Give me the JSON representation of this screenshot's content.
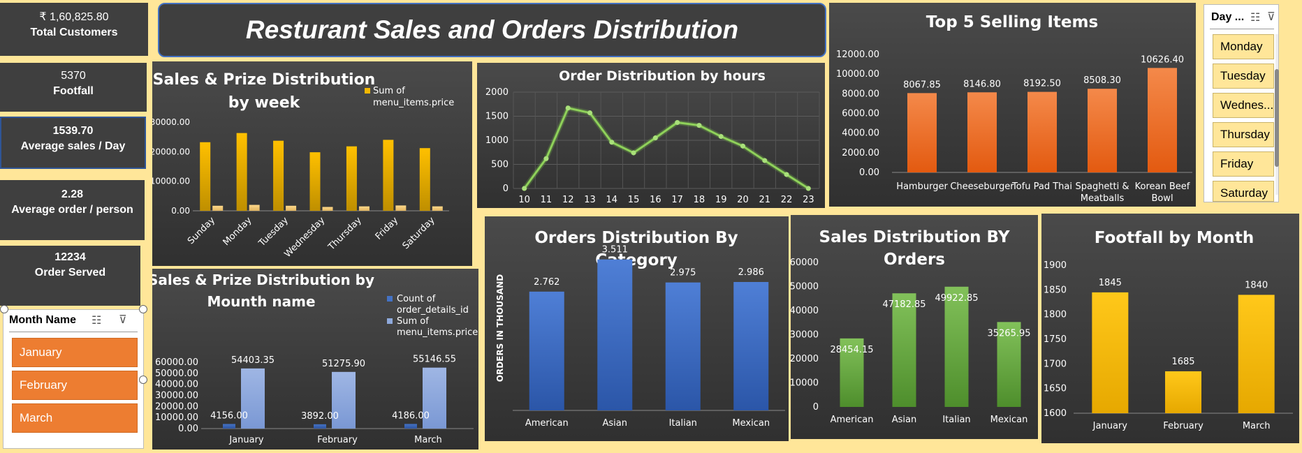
{
  "title": "Resturant Sales and Orders Distribution",
  "kpis": [
    {
      "value": "₹ 1,60,825.80",
      "label": "Total Customers"
    },
    {
      "value": "5370",
      "label": "Footfall"
    },
    {
      "value": "1539.70",
      "label": "Average sales / Day"
    },
    {
      "value": "2.28",
      "label": "Average order / person"
    },
    {
      "value": "12234",
      "label": "Order Served"
    }
  ],
  "month_slicer": {
    "header": "Month Name",
    "items": [
      "January",
      "February",
      "March"
    ]
  },
  "day_slicer": {
    "header": "Day ...",
    "items": [
      "Monday",
      "Tuesday",
      "Wednes...",
      "Thursday",
      "Friday",
      "Saturday"
    ]
  },
  "colors": {
    "orange": "#ED7D31",
    "gold": "#F2B700",
    "green": "#70AD47",
    "blue": "#4472C4",
    "light_blue": "#8EA9DB"
  },
  "chart_data": [
    {
      "id": "week",
      "type": "bar",
      "title": "Sales & Prize Distribution by week",
      "categories": [
        "Sunday",
        "Monday",
        "Tuesday",
        "Wednesday",
        "Thursday",
        "Friday",
        "Saturday"
      ],
      "series": [
        {
          "name": "",
          "values": [
            23200,
            26300,
            23700,
            19800,
            21800,
            24000,
            21200
          ]
        },
        {
          "name": "Sum of menu_items.price",
          "values": [
            1700,
            2000,
            1700,
            1300,
            1500,
            1800,
            1500
          ]
        }
      ],
      "yticks": [
        "0.00",
        "10000.00",
        "20000.00",
        "30000.00"
      ],
      "ylim": [
        0,
        34000
      ]
    },
    {
      "id": "hours",
      "type": "line",
      "title": "Order Distribution by hours",
      "x": [
        "10",
        "11",
        "12",
        "13",
        "14",
        "15",
        "16",
        "17",
        "18",
        "19",
        "20",
        "21",
        "22",
        "23"
      ],
      "values": [
        0,
        620,
        1670,
        1570,
        960,
        740,
        1050,
        1370,
        1310,
        1080,
        880,
        580,
        290,
        0
      ],
      "yticks": [
        "0",
        "500",
        "1000",
        "1500",
        "2000"
      ],
      "ylim": [
        0,
        2000
      ]
    },
    {
      "id": "top5",
      "type": "bar",
      "title": "Top 5 Selling Items",
      "categories": [
        "Hamburger",
        "Cheeseburger",
        "Tofu Pad Thai",
        "Spaghetti & Meatballs",
        "Korean Beef Bowl"
      ],
      "values": [
        8067.85,
        8146.8,
        8192.5,
        8508.3,
        10626.4
      ],
      "labels": [
        "8067.85",
        "8146.80",
        "8192.50",
        "8508.30",
        "10626.40"
      ],
      "yticks": [
        "0.00",
        "2000.00",
        "4000.00",
        "6000.00",
        "8000.00",
        "10000.00",
        "12000.00"
      ],
      "ylim": [
        0,
        12000
      ]
    },
    {
      "id": "month",
      "type": "bar",
      "title": "Sales & Prize Distribution by Mounth name",
      "categories": [
        "January",
        "February",
        "March"
      ],
      "series": [
        {
          "name": "Count of order_details_id",
          "values": [
            4156,
            3892,
            4186
          ],
          "labels": [
            "4156.00",
            "3892.00",
            "4186.00"
          ]
        },
        {
          "name": "Sum of menu_items.price",
          "values": [
            54403.35,
            51275.9,
            55146.55
          ],
          "labels": [
            "54403.35",
            "51275.90",
            "55146.55"
          ]
        }
      ],
      "yticks": [
        "0.00",
        "10000.00",
        "20000.00",
        "30000.00",
        "40000.00",
        "50000.00",
        "60000.00"
      ],
      "ylim": [
        0,
        60000
      ]
    },
    {
      "id": "category",
      "type": "bar",
      "title": "Orders Distribution By Category",
      "ylabel": "ORDERS IN THOUSAND",
      "categories": [
        "American",
        "Asian",
        "Italian",
        "Mexican"
      ],
      "values": [
        2.762,
        3.511,
        2.975,
        2.986
      ],
      "labels": [
        "2.762",
        "3.511",
        "2.975",
        "2.986"
      ],
      "ylim": [
        0,
        3.7
      ]
    },
    {
      "id": "sales_orders",
      "type": "bar",
      "title": "Sales Distribution BY Orders",
      "categories": [
        "American",
        "Asian",
        "Italian",
        "Mexican"
      ],
      "values": [
        28454.15,
        47182.85,
        49922.85,
        35265.95
      ],
      "labels": [
        "28454.15",
        "47182.85",
        "49922.85",
        "35265.95"
      ],
      "yticks": [
        "0",
        "10000",
        "20000",
        "30000",
        "40000",
        "50000",
        "60000"
      ],
      "ylim": [
        0,
        60000
      ]
    },
    {
      "id": "footfall",
      "type": "bar",
      "title": "Footfall by Month",
      "categories": [
        "January",
        "February",
        "March"
      ],
      "values": [
        1845,
        1685,
        1840
      ],
      "labels": [
        "1845",
        "1685",
        "1840"
      ],
      "yticks": [
        "1600",
        "1650",
        "1700",
        "1750",
        "1800",
        "1850",
        "1900"
      ],
      "ylim": [
        1600,
        1900
      ]
    }
  ]
}
